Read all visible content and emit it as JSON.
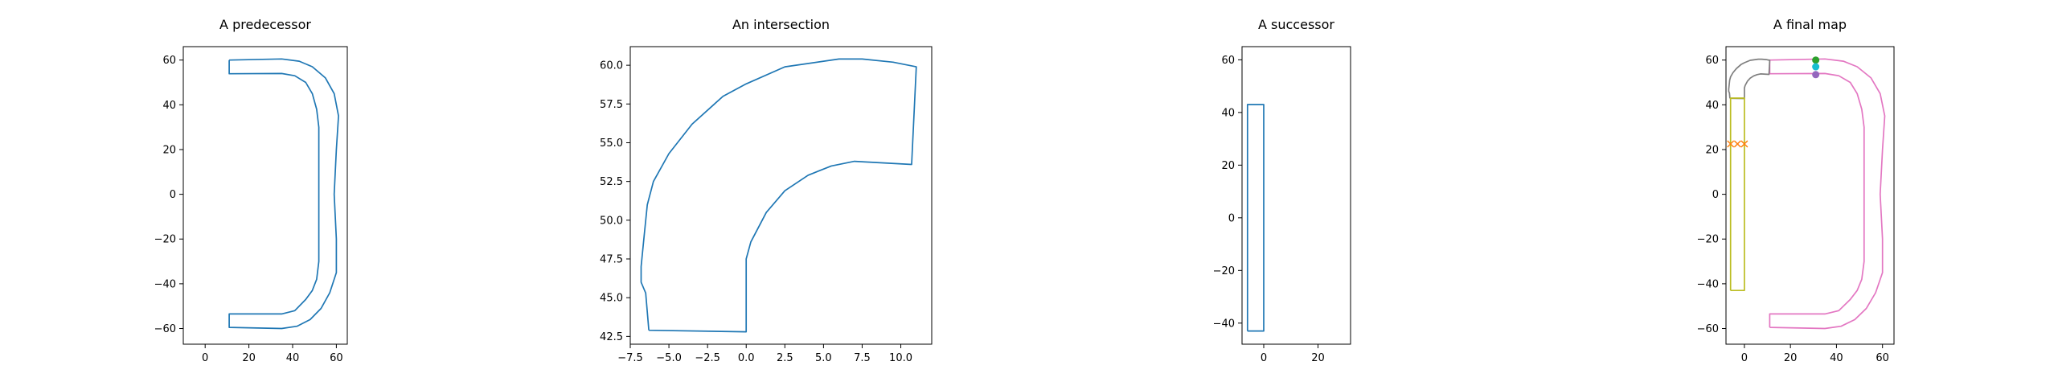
{
  "chart_data": [
    {
      "type": "line",
      "title": "A predecessor",
      "xlim": [
        -10,
        65
      ],
      "ylim": [
        -67,
        66
      ],
      "xticks": [
        0,
        20,
        40,
        60
      ],
      "yticks": [
        -60,
        -40,
        -20,
        0,
        20,
        40,
        60
      ],
      "series": [
        {
          "color": "#1f77b4",
          "marker": "none",
          "points": [
            [
              11,
              60
            ],
            [
              11,
              53.9
            ],
            [
              35,
              54
            ],
            [
              41,
              53
            ],
            [
              46,
              50
            ],
            [
              49,
              45
            ],
            [
              51,
              38
            ],
            [
              52,
              30
            ],
            [
              52,
              -20
            ],
            [
              52,
              -30
            ],
            [
              51,
              -38
            ],
            [
              49,
              -43
            ],
            [
              46,
              -47
            ],
            [
              41,
              -52
            ],
            [
              35,
              -53.5
            ],
            [
              11,
              -53.5
            ],
            [
              11,
              -59.5
            ],
            [
              35,
              -60
            ],
            [
              42,
              -59
            ],
            [
              48,
              -56
            ],
            [
              53,
              -51
            ],
            [
              57,
              -44
            ],
            [
              60,
              -35
            ],
            [
              60,
              -20
            ],
            [
              59,
              0
            ],
            [
              60,
              20
            ],
            [
              61,
              35
            ],
            [
              59,
              45
            ],
            [
              55,
              52
            ],
            [
              49,
              57
            ],
            [
              43,
              59.5
            ],
            [
              35,
              60.5
            ],
            [
              11,
              60
            ]
          ]
        }
      ]
    },
    {
      "type": "line",
      "title": "An intersection",
      "xlim": [
        -7.5,
        12
      ],
      "ylim": [
        42,
        61.2
      ],
      "xticks": [
        -7.5,
        -5.0,
        -2.5,
        0.0,
        2.5,
        5.0,
        7.5,
        10.0
      ],
      "xtick_labels": [
        "−7.5",
        "−5.0",
        "−2.5",
        "0.0",
        "2.5",
        "5.0",
        "7.5",
        "10.0"
      ],
      "yticks": [
        42.5,
        45.0,
        47.5,
        50.0,
        52.5,
        55.0,
        57.5,
        60.0
      ],
      "ytick_labels": [
        "42.5",
        "45.0",
        "47.5",
        "50.0",
        "52.5",
        "55.0",
        "57.5",
        "60.0"
      ],
      "series": [
        {
          "color": "#1f77b4",
          "marker": "none",
          "points": [
            [
              -6.3,
              42.9
            ],
            [
              0.0,
              42.8
            ],
            [
              0.0,
              47.5
            ],
            [
              0.3,
              48.6
            ],
            [
              1.3,
              50.5
            ],
            [
              2.5,
              51.9
            ],
            [
              4.0,
              52.9
            ],
            [
              5.5,
              53.5
            ],
            [
              7.0,
              53.8
            ],
            [
              10.7,
              53.6
            ],
            [
              11.0,
              59.9
            ],
            [
              9.5,
              60.2
            ],
            [
              7.5,
              60.4
            ],
            [
              6.0,
              60.4
            ],
            [
              2.5,
              59.9
            ],
            [
              0.0,
              58.8
            ],
            [
              -1.5,
              58.0
            ],
            [
              -3.5,
              56.2
            ],
            [
              -5.0,
              54.3
            ],
            [
              -6.0,
              52.5
            ],
            [
              -6.4,
              51.0
            ],
            [
              -6.6,
              49.0
            ],
            [
              -6.8,
              47.0
            ],
            [
              -6.8,
              46.0
            ],
            [
              -6.5,
              45.3
            ],
            [
              -6.3,
              42.9
            ]
          ]
        }
      ]
    },
    {
      "type": "line",
      "title": "A successor",
      "xlim": [
        -8,
        32
      ],
      "ylim": [
        -48,
        65
      ],
      "xticks": [
        0,
        20
      ],
      "yticks": [
        -40,
        -20,
        0,
        20,
        40,
        60
      ],
      "ytick_labels": [
        "−40",
        "−20",
        "0",
        "20",
        "40",
        "60"
      ],
      "series": [
        {
          "color": "#1f77b4",
          "marker": "none",
          "points": [
            [
              -6,
              -43
            ],
            [
              0,
              -43
            ],
            [
              0,
              43
            ],
            [
              -6,
              43
            ],
            [
              -6,
              -43
            ]
          ]
        }
      ]
    },
    {
      "type": "line",
      "title": "A final map",
      "xlim": [
        -8,
        65
      ],
      "ylim": [
        -67,
        66
      ],
      "xticks": [
        0,
        20,
        40,
        60
      ],
      "yticks": [
        -60,
        -40,
        -20,
        0,
        20,
        40,
        60
      ],
      "series": [
        {
          "color": "#e377c2",
          "marker": "none",
          "points": [
            [
              11,
              -59.5
            ],
            [
              35,
              -60
            ],
            [
              42,
              -59
            ],
            [
              48,
              -56
            ],
            [
              53,
              -51
            ],
            [
              57,
              -44
            ],
            [
              60,
              -35
            ],
            [
              60,
              -20
            ],
            [
              59,
              0
            ],
            [
              60,
              20
            ],
            [
              61,
              35
            ],
            [
              59,
              45
            ],
            [
              55,
              52
            ],
            [
              49,
              57
            ],
            [
              43,
              59.5
            ],
            [
              35,
              60.5
            ],
            [
              11,
              60
            ],
            [
              11,
              53.9
            ],
            [
              35,
              54
            ],
            [
              41,
              53
            ],
            [
              46,
              50
            ],
            [
              49,
              45
            ],
            [
              51,
              38
            ],
            [
              52,
              30
            ],
            [
              52,
              -20
            ],
            [
              52,
              -30
            ],
            [
              51,
              -38
            ],
            [
              49,
              -43
            ],
            [
              46,
              -47
            ],
            [
              41,
              -52
            ],
            [
              35,
              -53.5
            ],
            [
              11,
              -53.5
            ],
            [
              11,
              -59.5
            ]
          ]
        },
        {
          "color": "#7f7f7f",
          "marker": "none",
          "points": [
            [
              -6.3,
              42.9
            ],
            [
              0,
              42.8
            ],
            [
              0,
              47.5
            ],
            [
              0.3,
              48.6
            ],
            [
              1.3,
              50.5
            ],
            [
              2.5,
              51.9
            ],
            [
              4,
              52.9
            ],
            [
              5.5,
              53.5
            ],
            [
              7,
              53.8
            ],
            [
              10.7,
              53.6
            ],
            [
              11,
              59.9
            ],
            [
              9.5,
              60.2
            ],
            [
              7.5,
              60.4
            ],
            [
              6,
              60.4
            ],
            [
              2.5,
              59.9
            ],
            [
              0,
              58.8
            ],
            [
              -1.5,
              58
            ],
            [
              -3.5,
              56.2
            ],
            [
              -5,
              54.3
            ],
            [
              -6,
              52.5
            ],
            [
              -6.4,
              51
            ],
            [
              -6.6,
              49
            ],
            [
              -6.8,
              47
            ],
            [
              -6.8,
              46
            ],
            [
              -6.5,
              45.3
            ],
            [
              -6.3,
              42.9
            ]
          ]
        },
        {
          "color": "#bcbd22",
          "marker": "none",
          "points": [
            [
              -6,
              -43
            ],
            [
              0,
              -43
            ],
            [
              0,
              43
            ],
            [
              -6,
              43
            ],
            [
              -6,
              -43
            ]
          ]
        },
        {
          "color": "#ff7f0e",
          "marker": "x",
          "points": [
            [
              -6,
              22.5
            ],
            [
              -3,
              22.5
            ],
            [
              0,
              22.5
            ]
          ]
        },
        {
          "color": "#2ca02c",
          "marker": "o",
          "points": [
            [
              31,
              60
            ]
          ]
        },
        {
          "color": "#17becf",
          "marker": "o",
          "points": [
            [
              31,
              57
            ]
          ]
        },
        {
          "color": "#9467bd",
          "marker": "o",
          "points": [
            [
              31,
              53.5
            ]
          ]
        }
      ]
    }
  ]
}
